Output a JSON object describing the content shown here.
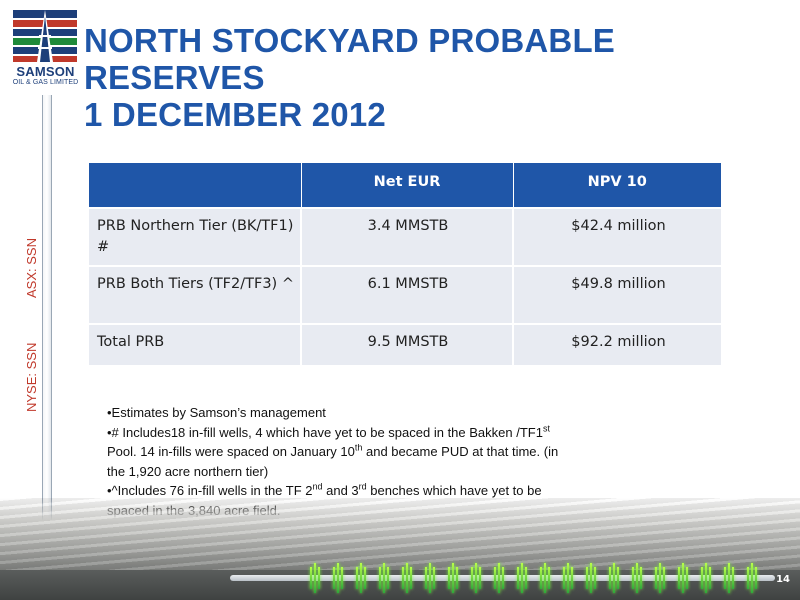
{
  "logo": {
    "name": "SAMSON",
    "subtitle": "OIL & GAS LIMITED",
    "colors": {
      "blue": "#1d3f7a",
      "red": "#c0392b",
      "green": "#1f8a3a"
    }
  },
  "title": {
    "line1": "NORTH STOCKYARD PROBABLE RESERVES",
    "line2": "1 DECEMBER 2012"
  },
  "ticker": {
    "asx": "ASX: SSN",
    "nyse": "NYSE: SSN"
  },
  "table": {
    "headers": [
      "",
      "Net EUR",
      "NPV 10"
    ],
    "rows": [
      {
        "label": "PRB Northern Tier (BK/TF1) #",
        "eur": "3.4 MMSTB",
        "npv": "$42.4 million"
      },
      {
        "label": "PRB Both Tiers (TF2/TF3) ^",
        "eur": "6.1 MMSTB",
        "npv": "$49.8 million"
      },
      {
        "label": "Total PRB",
        "eur": "9.5 MMSTB",
        "npv": "$92.2 million"
      }
    ],
    "header_color": "#1f56a8",
    "row_color": "#e8ebf2"
  },
  "notes": {
    "line1": "•Estimates by Samson’s management",
    "line2_a": "•# Includes18 in-fill wells, 4 which have yet to be spaced in the Bakken /TF1",
    "line2_sup1": "st",
    "line2_b": " Pool. 14 in-fills were spaced on January 10",
    "line2_sup2": "th",
    "line2_c": " and became PUD at that time. (in the 1,920 acre northern tier)",
    "line3_a": "•^Includes 76 in-fill wells in the TF 2",
    "line3_sup1": "nd",
    "line3_b": " and 3",
    "line3_sup2": "rd",
    "line3_c": " benches which have yet to be spaced in the 3,840 acre field."
  },
  "page_number": "14"
}
